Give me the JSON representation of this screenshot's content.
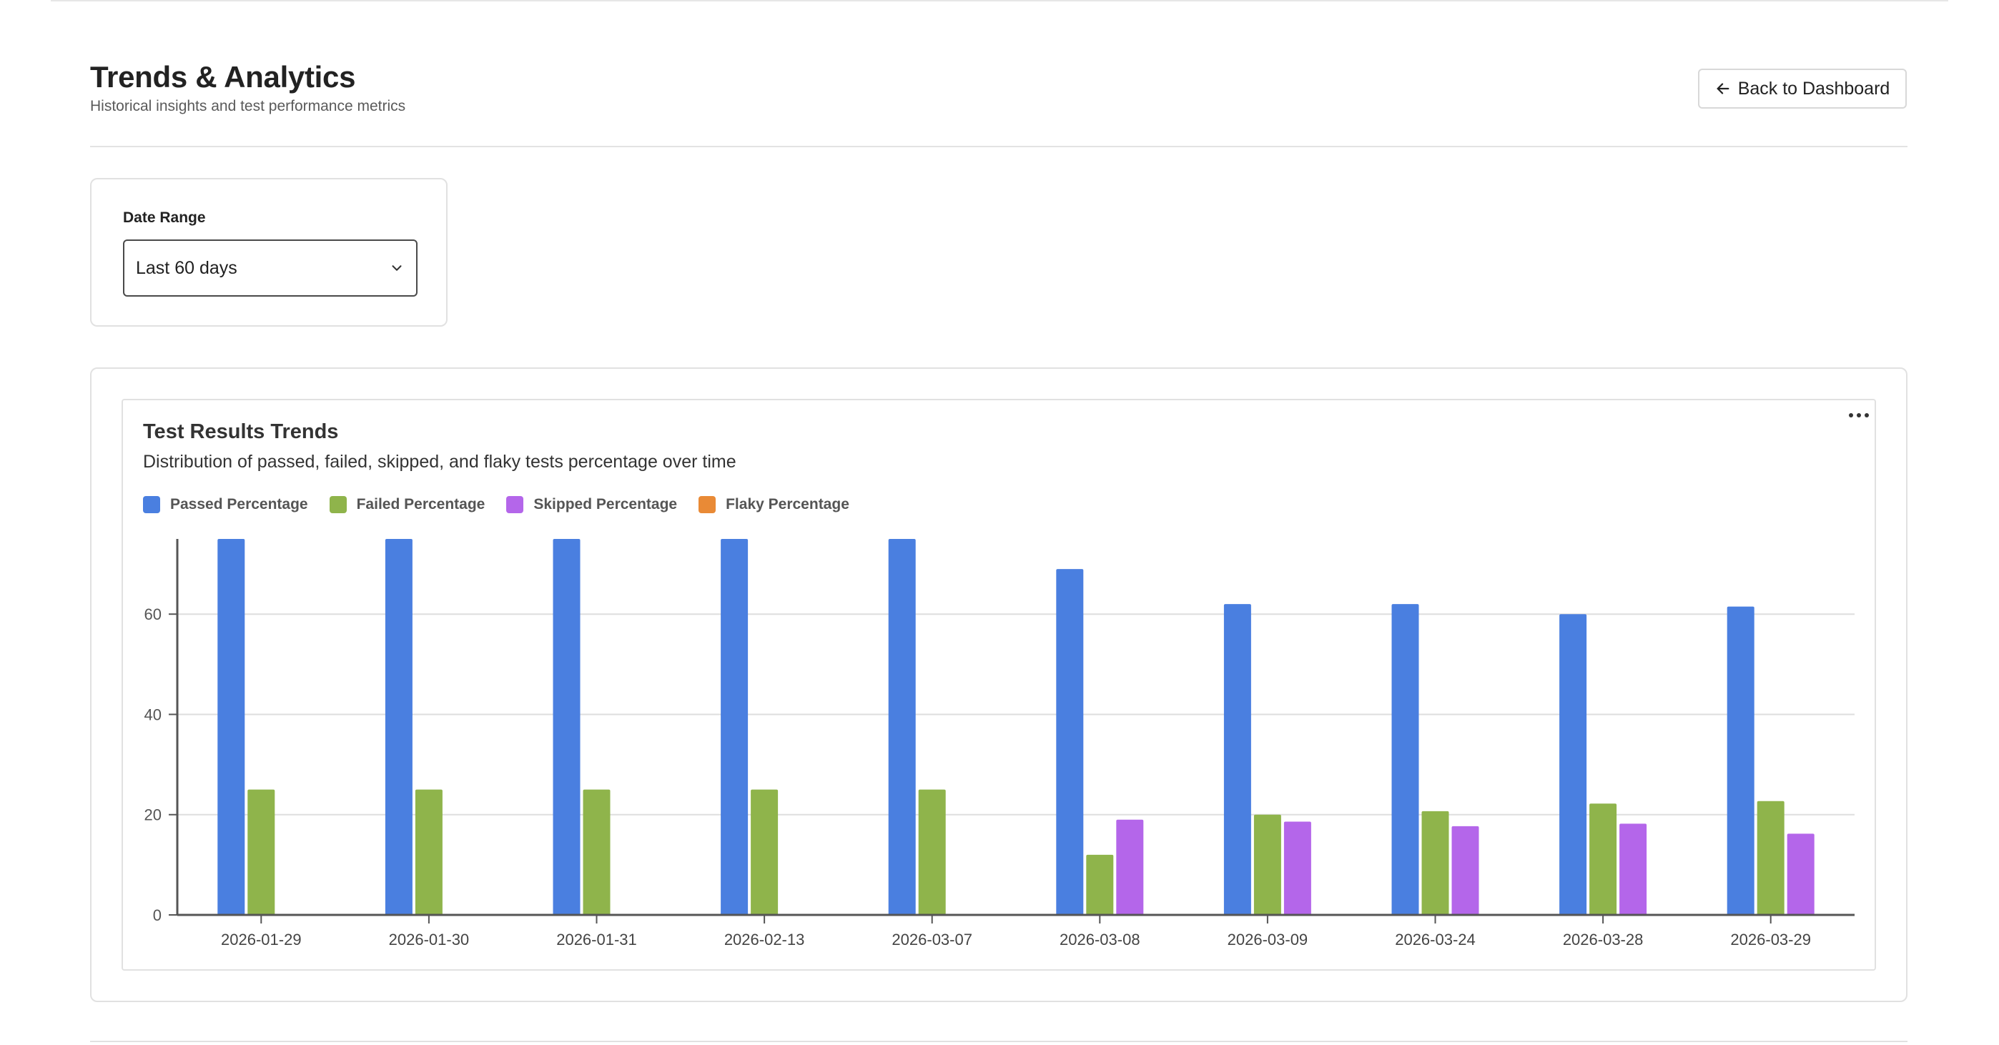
{
  "header": {
    "title": "Trends & Analytics",
    "subtitle": "Historical insights and test performance metrics",
    "back_label": "Back to Dashboard"
  },
  "filters": {
    "date_range_label": "Date Range",
    "date_range_value": "Last 60 days"
  },
  "chart_card": {
    "menu_icon": "more-horizontal-icon"
  },
  "chart_data": {
    "type": "bar",
    "title": "Test Results Trends",
    "subtitle": "Distribution of passed, failed, skipped, and flaky tests percentage over time",
    "xlabel": "",
    "ylabel": "",
    "ylim": [
      0,
      75
    ],
    "yticks": [
      0,
      20,
      40,
      60
    ],
    "grid": true,
    "legend_position": "top-left",
    "categories": [
      "2026-01-29",
      "2026-01-30",
      "2026-01-31",
      "2026-02-13",
      "2026-03-07",
      "2026-03-08",
      "2026-03-09",
      "2026-03-24",
      "2026-03-28",
      "2026-03-29"
    ],
    "series": [
      {
        "name": "Passed Percentage",
        "color": "#4a7fe0",
        "values": [
          75,
          75,
          75,
          75,
          75,
          69,
          62,
          62,
          60,
          61.5
        ]
      },
      {
        "name": "Failed Percentage",
        "color": "#8fb44b",
        "values": [
          25,
          25,
          25,
          25,
          25,
          12,
          20,
          20.7,
          22.2,
          22.7
        ]
      },
      {
        "name": "Skipped Percentage",
        "color": "#b466ea",
        "values": [
          0,
          0,
          0,
          0,
          0,
          19,
          18.6,
          17.7,
          18.2,
          16.2
        ]
      },
      {
        "name": "Flaky Percentage",
        "color": "#e98a36",
        "values": [
          0,
          0,
          0,
          0,
          0,
          0,
          0,
          0,
          0,
          0
        ]
      }
    ]
  }
}
